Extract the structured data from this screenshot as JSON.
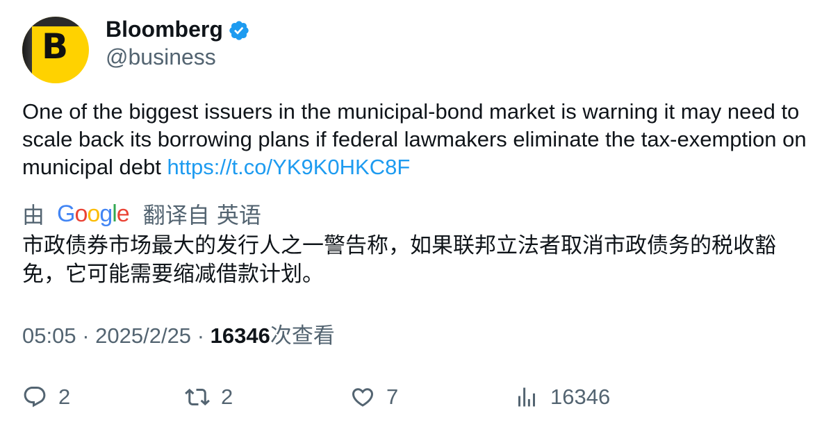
{
  "author": {
    "avatar_letter": "B",
    "name": "Bloomberg",
    "handle": "@business",
    "verified_icon": "verified-badge-icon"
  },
  "tweet": {
    "text": "One of the biggest issuers in the municipal-bond market is warning it may need to scale back its borrowing plans if federal lawmakers eliminate the tax-exemption on municipal debt ",
    "link": "https://t.co/YK9K0HKC8F"
  },
  "translation": {
    "prefix": "由",
    "provider": "Google",
    "suffix": "翻译自 英语",
    "text": "市政债券市场最大的发行人之一警告称，如果联邦立法者取消市政债务的税收豁免，它可能需要缩减借款计划。"
  },
  "meta": {
    "time": "05:05",
    "date": "2025/2/25",
    "views_count": "16346",
    "views_label": "次查看"
  },
  "actions": {
    "reply_count": "2",
    "retweet_count": "2",
    "like_count": "7",
    "views_count": "16346"
  },
  "colors": {
    "brand_blue": "#1d9bf0",
    "avatar_yellow": "#ffd200",
    "muted": "#536471",
    "text": "#0f1419"
  }
}
